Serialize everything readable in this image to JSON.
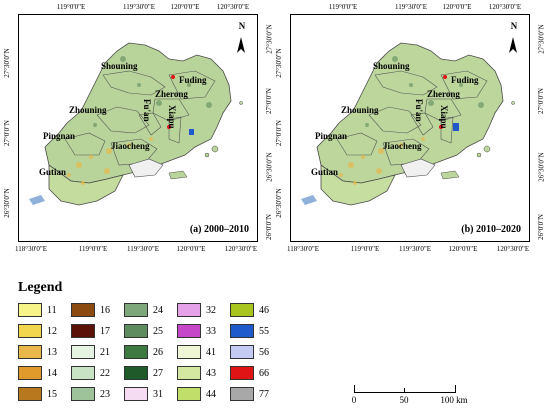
{
  "panels": [
    {
      "label": "(a) 2000–2010",
      "top_ticks": [
        "119°0'0\"E",
        "119°30'0\"E",
        "120°0'0\"E",
        "120°30'0\"E"
      ],
      "bottom_ticks": [
        "118°30'0\"E",
        "119°0'0\"E",
        "119°30'0\"E",
        "120°0'0\"E",
        "120°30'0\"E"
      ],
      "left_ticks": [
        "27°30'0\"N",
        "27°0'0\"N",
        "26°30'0\"N"
      ],
      "right_ticks": [
        "27°30'0\"N",
        "27°0'0\"N",
        "26°30'0\"N",
        "26°0'0\"N"
      ],
      "regions": [
        "Shouning",
        "Fuding",
        "Zherong",
        "Zhouning",
        "Fu'an",
        "Xiapu",
        "Pingnan",
        "Jiaocheng",
        "Gutian"
      ],
      "north": "N"
    },
    {
      "label": "(b) 2010–2020",
      "top_ticks": [
        "119°0'0\"E",
        "119°30'0\"E",
        "120°0'0\"E",
        "120°30'0\"E"
      ],
      "bottom_ticks": [
        "118°30'0\"E",
        "119°0'0\"E",
        "119°30'0\"E",
        "120°0'0\"E",
        "120°30'0\"E"
      ],
      "left_ticks": [
        "27°30'0\"N",
        "27°0'0\"N",
        "26°30'0\"N"
      ],
      "right_ticks": [
        "27°30'0\"N",
        "27°0'0\"N",
        "26°30'0\"N",
        "26°0'0\"N"
      ],
      "regions": [
        "Shouning",
        "Fuding",
        "Zherong",
        "Zhouning",
        "Fu'an",
        "Xiapu",
        "Pingnan",
        "Jiaocheng",
        "Gutian"
      ],
      "north": "N"
    }
  ],
  "legend": {
    "title": "Legend",
    "items": [
      {
        "code": "11",
        "color": "#f7f58a"
      },
      {
        "code": "12",
        "color": "#f2d64e"
      },
      {
        "code": "13",
        "color": "#e8b84a"
      },
      {
        "code": "14",
        "color": "#e09a2c"
      },
      {
        "code": "15",
        "color": "#b8791e"
      },
      {
        "code": "16",
        "color": "#8a4a10"
      },
      {
        "code": "17",
        "color": "#5a1208"
      },
      {
        "code": "21",
        "color": "#e6f2e2"
      },
      {
        "code": "22",
        "color": "#c8e2c4"
      },
      {
        "code": "23",
        "color": "#9ec29a"
      },
      {
        "code": "24",
        "color": "#7ea87c"
      },
      {
        "code": "25",
        "color": "#5e8c5e"
      },
      {
        "code": "26",
        "color": "#3f7a42"
      },
      {
        "code": "27",
        "color": "#1f5a2a"
      },
      {
        "code": "31",
        "color": "#f6dcf2"
      },
      {
        "code": "32",
        "color": "#e6a2e8"
      },
      {
        "code": "33",
        "color": "#c448c8"
      },
      {
        "code": "41",
        "color": "#eef6d6"
      },
      {
        "code": "43",
        "color": "#d4e8a2"
      },
      {
        "code": "44",
        "color": "#c2de6a"
      },
      {
        "code": "46",
        "color": "#a8c41e"
      },
      {
        "code": "55",
        "color": "#1f5acc"
      },
      {
        "code": "56",
        "color": "#c4caf2"
      },
      {
        "code": "66",
        "color": "#e01414"
      },
      {
        "code": "77",
        "color": "#a8a8a8"
      }
    ]
  },
  "scalebar": {
    "labels": [
      "0",
      "50",
      "100 km"
    ]
  }
}
